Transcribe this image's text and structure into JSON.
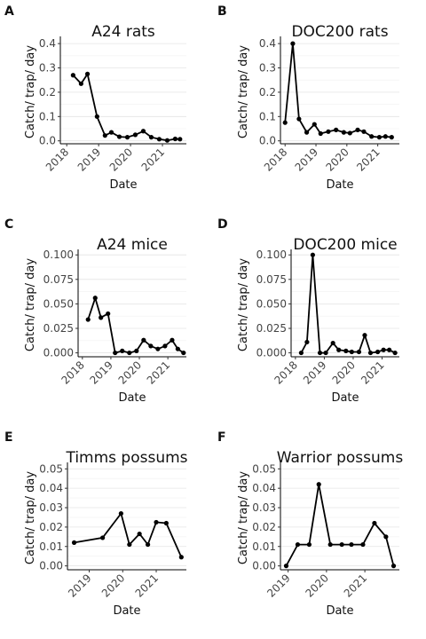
{
  "chart_data": [
    {
      "type": "line",
      "tag": "A",
      "title": "A24 rats",
      "xlabel": "Date",
      "ylabel": "Catch/ trap/ day",
      "color": "#000000",
      "grid": true,
      "x": [
        2018.2,
        2018.45,
        2018.65,
        2018.95,
        2019.2,
        2019.4,
        2019.65,
        2019.9,
        2020.15,
        2020.4,
        2020.65,
        2020.9,
        2021.15,
        2021.4,
        2021.55
      ],
      "values": [
        0.27,
        0.235,
        0.275,
        0.1,
        0.022,
        0.035,
        0.017,
        0.015,
        0.025,
        0.04,
        0.015,
        0.007,
        0.002,
        0.008,
        0.007
      ],
      "xlim": [
        2017.8,
        2021.75
      ],
      "xticks": [
        2018,
        2019,
        2020,
        2021
      ],
      "ylim": [
        -0.012,
        0.415
      ],
      "yticks": [
        {
          "value": 0,
          "label": "0.0"
        },
        0.1,
        0.2,
        0.3,
        0.4
      ]
    },
    {
      "type": "line",
      "tag": "B",
      "title": "DOC200 rats",
      "xlabel": "Date",
      "ylabel": "Catch/ trap/ day",
      "color": "#000000",
      "grid": true,
      "x": [
        2018.0,
        2018.25,
        2018.45,
        2018.7,
        2018.95,
        2019.15,
        2019.4,
        2019.65,
        2019.9,
        2020.1,
        2020.35,
        2020.55,
        2020.8,
        2021.05,
        2021.25,
        2021.45
      ],
      "values": [
        0.075,
        0.4,
        0.09,
        0.035,
        0.068,
        0.03,
        0.038,
        0.045,
        0.035,
        0.032,
        0.045,
        0.038,
        0.018,
        0.015,
        0.018,
        0.015
      ],
      "xlim": [
        2017.85,
        2021.7
      ],
      "xticks": [
        2018,
        2019,
        2020,
        2021
      ],
      "ylim": [
        -0.012,
        0.415
      ],
      "yticks": [
        {
          "value": 0,
          "label": "0.0"
        },
        0.1,
        0.2,
        0.3,
        0.4
      ]
    },
    {
      "type": "line",
      "tag": "C",
      "title": "A24 mice",
      "xlabel": "Date",
      "ylabel": "Catch/ trap/ day",
      "color": "#000000",
      "grid": true,
      "x": [
        2018.2,
        2018.45,
        2018.65,
        2018.9,
        2019.15,
        2019.4,
        2019.65,
        2019.9,
        2020.15,
        2020.4,
        2020.65,
        2020.9,
        2021.15,
        2021.35,
        2021.55
      ],
      "values": [
        0.034,
        0.056,
        0.036,
        0.04,
        0.0,
        0.002,
        0.0,
        0.002,
        0.013,
        0.007,
        0.004,
        0.007,
        0.013,
        0.004,
        0.0
      ],
      "xlim": [
        2017.85,
        2021.65
      ],
      "xticks": [
        2018,
        2019,
        2020,
        2021
      ],
      "ylim": [
        -0.004,
        0.102
      ],
      "yticks": [
        {
          "value": 0,
          "label": "0.000"
        },
        {
          "value": 0.025,
          "label": "0.025"
        },
        {
          "value": 0.05,
          "label": "0.050"
        },
        {
          "value": 0.075,
          "label": "0.075"
        },
        {
          "value": 0.1,
          "label": "0.100"
        }
      ]
    },
    {
      "type": "line",
      "tag": "D",
      "title": "DOC200 mice",
      "xlabel": "Date",
      "ylabel": "Catch/ trap/ day",
      "color": "#000000",
      "grid": true,
      "x": [
        2018.2,
        2018.4,
        2018.6,
        2018.85,
        2019.05,
        2019.3,
        2019.5,
        2019.75,
        2019.95,
        2020.2,
        2020.4,
        2020.6,
        2020.85,
        2021.05,
        2021.25,
        2021.45
      ],
      "values": [
        0.0,
        0.011,
        0.1,
        0.0,
        0.0,
        0.01,
        0.003,
        0.002,
        0.001,
        0.001,
        0.018,
        0.0,
        0.001,
        0.003,
        0.003,
        0.0
      ],
      "xlim": [
        2017.85,
        2021.6
      ],
      "xticks": [
        2018,
        2019,
        2020,
        2021
      ],
      "ylim": [
        -0.004,
        0.102
      ],
      "yticks": [
        {
          "value": 0,
          "label": "0.000"
        },
        {
          "value": 0.025,
          "label": "0.025"
        },
        {
          "value": 0.05,
          "label": "0.050"
        },
        {
          "value": 0.075,
          "label": "0.075"
        },
        {
          "value": 0.1,
          "label": "0.100"
        }
      ]
    },
    {
      "type": "line",
      "tag": "E",
      "title": "Timms possums",
      "xlabel": "Date",
      "ylabel": "Catch/ trap/ day",
      "color": "#000000",
      "grid": true,
      "x": [
        2018.55,
        2019.4,
        2019.95,
        2020.2,
        2020.5,
        2020.75,
        2021.0,
        2021.3,
        2021.75
      ],
      "values": [
        0.012,
        0.0145,
        0.027,
        0.011,
        0.0165,
        0.011,
        0.0225,
        0.022,
        0.0045
      ],
      "xlim": [
        2018.35,
        2021.9
      ],
      "xticks": [
        2019,
        2020,
        2021
      ],
      "ylim": [
        -0.002,
        0.0515
      ],
      "yticks": [
        {
          "value": 0,
          "label": "0.00"
        },
        0.01,
        0.02,
        0.03,
        0.04,
        0.05
      ]
    },
    {
      "type": "line",
      "tag": "F",
      "title": "Warrior possums",
      "xlabel": "Date",
      "ylabel": "Catch/ trap/ day",
      "color": "#000000",
      "grid": true,
      "x": [
        2018.95,
        2019.25,
        2019.55,
        2019.8,
        2020.1,
        2020.4,
        2020.65,
        2020.95,
        2021.25,
        2021.55,
        2021.75
      ],
      "values": [
        0.0,
        0.011,
        0.011,
        0.042,
        0.011,
        0.011,
        0.011,
        0.011,
        0.022,
        0.015,
        0.0
      ],
      "xlim": [
        2018.8,
        2021.9
      ],
      "xticks": [
        2019,
        2020,
        2021
      ],
      "ylim": [
        -0.002,
        0.0515
      ],
      "yticks": [
        {
          "value": 0,
          "label": "0.00"
        },
        0.01,
        0.02,
        0.03,
        0.04,
        0.05
      ]
    }
  ]
}
